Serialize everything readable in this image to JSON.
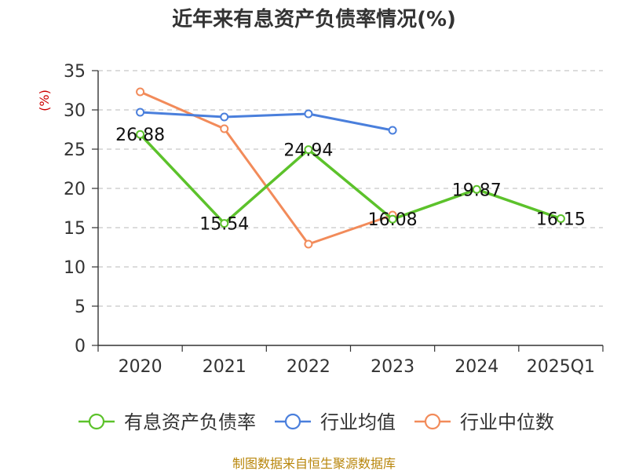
{
  "title": "近年来有息资产负债率情况(%)",
  "source": "制图数据来自恒生聚源数据库",
  "chart_data": {
    "type": "line",
    "title": "近年来有息资产负债率情况(%)",
    "ylabel": "(%)",
    "xlabel": "",
    "ylim": [
      0,
      35
    ],
    "yticks": [
      0,
      5,
      10,
      15,
      20,
      25,
      30,
      35
    ],
    "categories": [
      "2020",
      "2021",
      "2022",
      "2023",
      "2024",
      "2025Q1"
    ],
    "grid": true,
    "legend_position": "bottom",
    "series": [
      {
        "name": "有息资产负债率",
        "color": "#5cc22b",
        "values": [
          26.88,
          15.54,
          24.94,
          16.08,
          19.87,
          16.15
        ],
        "labels": [
          "26.88",
          "15.54",
          "24.94",
          "16.08",
          "19.87",
          "16.15"
        ]
      },
      {
        "name": "行业均值",
        "color": "#4a7fdc",
        "values": [
          29.7,
          29.1,
          29.5,
          27.4,
          null,
          null
        ]
      },
      {
        "name": "行业中位数",
        "color": "#f28b5a",
        "values": [
          32.3,
          27.6,
          12.9,
          16.6,
          null,
          null
        ]
      }
    ]
  }
}
